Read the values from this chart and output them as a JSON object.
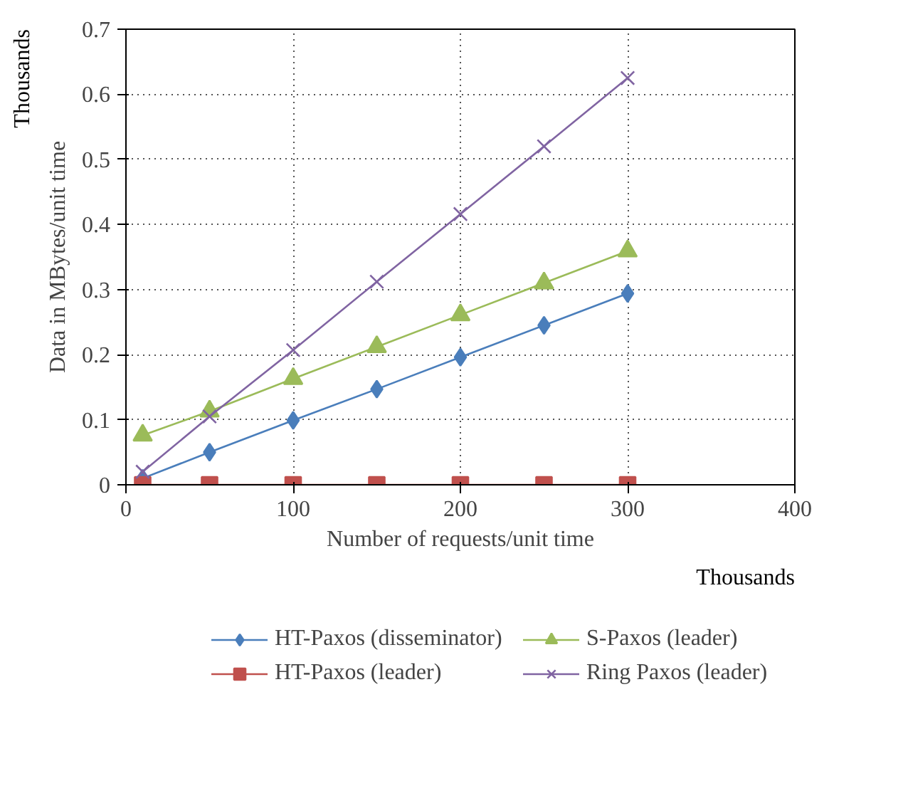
{
  "chart_data": {
    "type": "line",
    "xlabel": "Number of requests/unit time",
    "ylabel": "Data in MBytes/unit time",
    "annotations": [
      "Thousands",
      "Thousands"
    ],
    "x": [
      10,
      50,
      100,
      150,
      200,
      250,
      300
    ],
    "series": [
      {
        "name": "HT-Paxos (disseminator)",
        "color": "#4a7ebb",
        "marker": "diamond",
        "values": [
          0.01,
          0.05,
          0.099,
          0.147,
          0.196,
          0.245,
          0.294
        ]
      },
      {
        "name": "HT-Paxos (leader)",
        "color": "#c0504d",
        "marker": "square",
        "values": [
          0,
          0,
          0,
          0,
          0,
          0,
          0
        ]
      },
      {
        "name": "S-Paxos (leader)",
        "color": "#9bbb59",
        "marker": "triangle",
        "values": [
          0.076,
          0.113,
          0.163,
          0.212,
          0.261,
          0.31,
          0.359
        ]
      },
      {
        "name": "Ring Paxos (leader)",
        "color": "#8064a2",
        "marker": "cross",
        "values": [
          0.02,
          0.105,
          0.207,
          0.312,
          0.416,
          0.52,
          0.625
        ]
      }
    ],
    "xlim": [
      0,
      400
    ],
    "xticks": [
      0,
      100,
      200,
      300,
      400
    ],
    "ylim": [
      0,
      0.7
    ],
    "yticks": [
      0,
      0.1,
      0.2,
      0.3,
      0.4,
      0.5,
      0.6,
      0.7
    ],
    "grid": true,
    "legend": "bottom"
  }
}
